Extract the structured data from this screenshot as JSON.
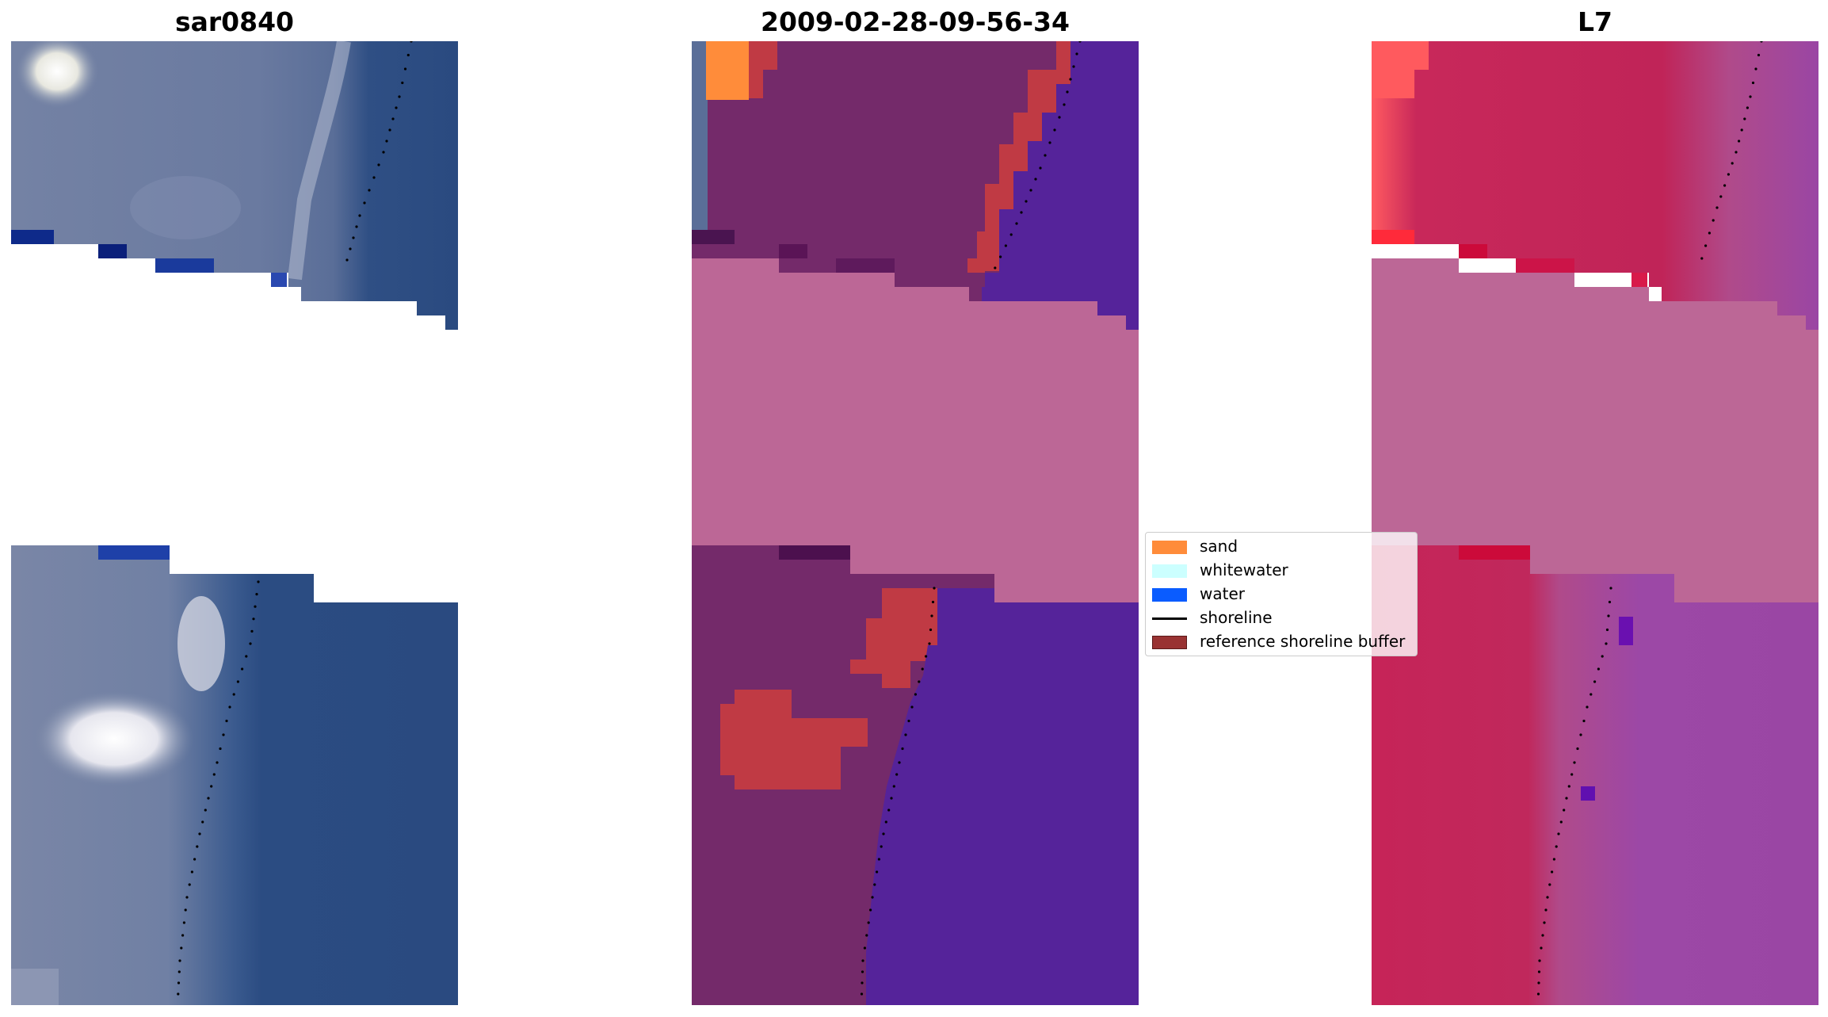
{
  "chart_data": [
    {
      "type": "image",
      "title": "sar0840",
      "dominant_color": "#2f4f80",
      "series": [
        "shoreline"
      ]
    },
    {
      "type": "image",
      "title": "2009-02-28-09-56-34",
      "classes": [
        "sand",
        "whitewater",
        "water",
        "reference shoreline buffer"
      ],
      "series": [
        "shoreline"
      ]
    },
    {
      "type": "image",
      "title": "L7",
      "dominant_color": "#c0245a",
      "series": [
        "shoreline"
      ]
    }
  ],
  "legend": {
    "entries": [
      {
        "label": "sand",
        "color": "#ff8c3a",
        "kind": "patch"
      },
      {
        "label": "whitewater",
        "color": "#ccffff",
        "kind": "patch"
      },
      {
        "label": "water",
        "color": "#0a5cff",
        "kind": "patch"
      },
      {
        "label": "shoreline",
        "color": "#000000",
        "kind": "line"
      },
      {
        "label": "reference shoreline buffer",
        "color": "#993333",
        "kind": "patch"
      }
    ]
  }
}
